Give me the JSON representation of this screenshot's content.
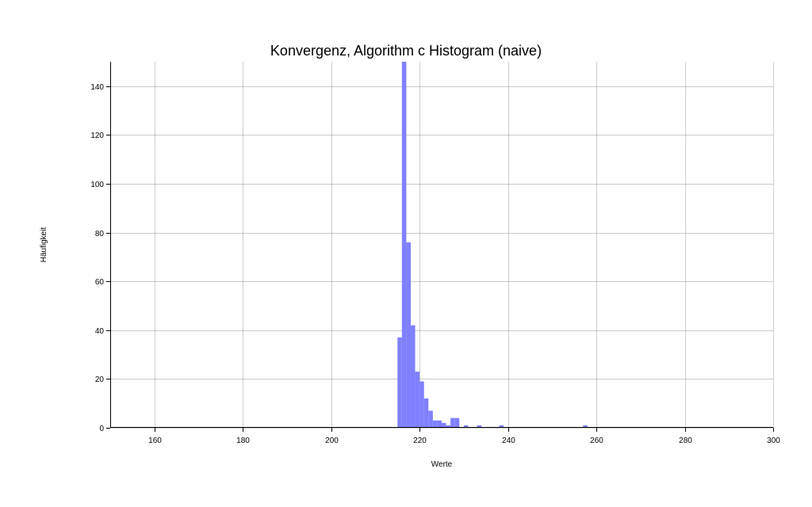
{
  "chart_data": {
    "type": "bar",
    "title": "Konvergenz, Algorithm c Histogram (naive)",
    "xlabel": "Werte",
    "ylabel": "Häufigkeit",
    "xlim": [
      150,
      300
    ],
    "ylim": [
      0,
      150
    ],
    "x_ticks": [
      160,
      180,
      200,
      220,
      240,
      260,
      280,
      300
    ],
    "y_ticks": [
      0,
      20,
      40,
      60,
      80,
      100,
      120,
      140
    ],
    "grid": true,
    "bar_color": "#8080ff",
    "bin_width": 1,
    "bins": [
      {
        "x": 215,
        "count": 37
      },
      {
        "x": 216,
        "count": 150
      },
      {
        "x": 217,
        "count": 76
      },
      {
        "x": 218,
        "count": 42
      },
      {
        "x": 219,
        "count": 23
      },
      {
        "x": 220,
        "count": 19
      },
      {
        "x": 221,
        "count": 12
      },
      {
        "x": 222,
        "count": 7
      },
      {
        "x": 223,
        "count": 3
      },
      {
        "x": 224,
        "count": 3
      },
      {
        "x": 225,
        "count": 2
      },
      {
        "x": 226,
        "count": 1
      },
      {
        "x": 227,
        "count": 4
      },
      {
        "x": 228,
        "count": 4
      },
      {
        "x": 230,
        "count": 1
      },
      {
        "x": 233,
        "count": 1
      },
      {
        "x": 238,
        "count": 1
      },
      {
        "x": 257,
        "count": 1
      }
    ]
  }
}
